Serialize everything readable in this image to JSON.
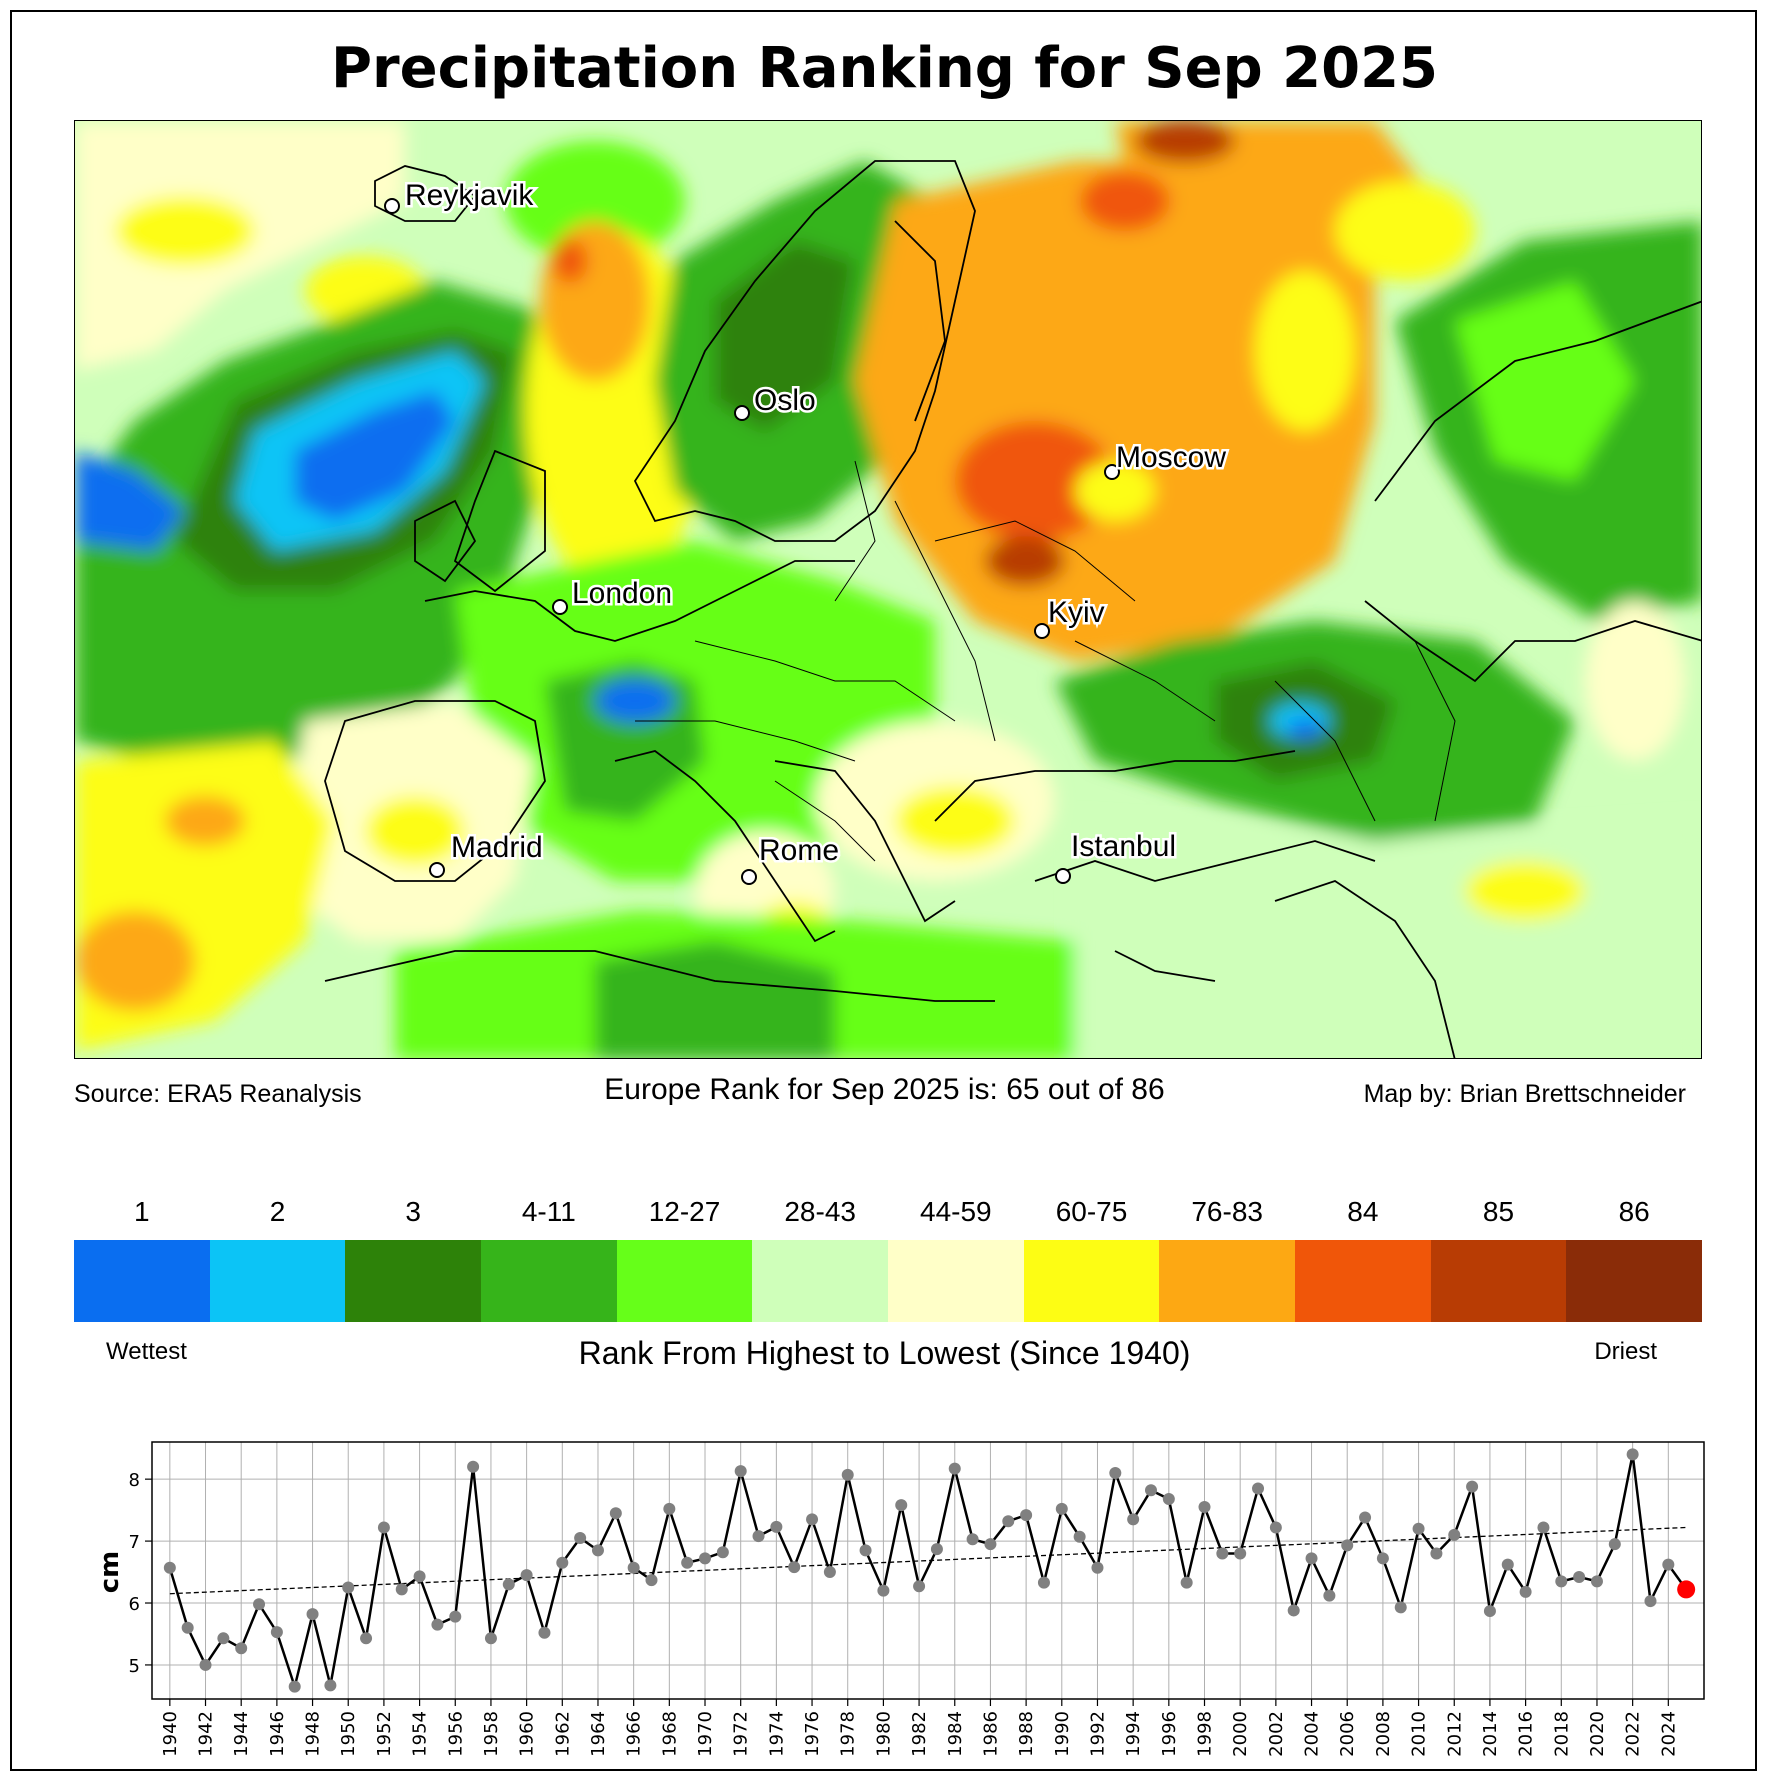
{
  "title": "Precipitation Ranking for Sep 2025",
  "source": "Source: ERA5 Reanalysis",
  "rank_statement": "Europe Rank for Sep 2025 is: 65 out of 86",
  "credit": "Map by: Brian Brettschneider",
  "cities": [
    {
      "name": "Reykjavik"
    },
    {
      "name": "Oslo"
    },
    {
      "name": "Moscow"
    },
    {
      "name": "London"
    },
    {
      "name": "Kyiv"
    },
    {
      "name": "Madrid"
    },
    {
      "name": "Rome"
    },
    {
      "name": "Istanbul"
    }
  ],
  "legend": {
    "bins": [
      {
        "label": "1",
        "color": "#0a6ef0"
      },
      {
        "label": "2",
        "color": "#0cc4f6"
      },
      {
        "label": "3",
        "color": "#2d8209"
      },
      {
        "label": "4-11",
        "color": "#36b41a"
      },
      {
        "label": "12-27",
        "color": "#66ff19"
      },
      {
        "label": "28-43",
        "color": "#cfffba"
      },
      {
        "label": "44-59",
        "color": "#ffffc8"
      },
      {
        "label": "60-75",
        "color": "#fdfd14"
      },
      {
        "label": "76-83",
        "color": "#fda813"
      },
      {
        "label": "84",
        "color": "#f05609"
      },
      {
        "label": "85",
        "color": "#b83c04"
      },
      {
        "label": "86",
        "color": "#8a2c08"
      }
    ],
    "left_label": "Wettest",
    "right_label": "Driest",
    "axis_label": "Rank From Highest to Lowest (Since 1940)"
  },
  "chart_data": {
    "type": "line",
    "title": "",
    "xlabel": "",
    "ylabel": "cm",
    "x": [
      1940,
      1941,
      1942,
      1943,
      1944,
      1945,
      1946,
      1947,
      1948,
      1949,
      1950,
      1951,
      1952,
      1953,
      1954,
      1955,
      1956,
      1957,
      1958,
      1959,
      1960,
      1961,
      1962,
      1963,
      1964,
      1965,
      1966,
      1967,
      1968,
      1969,
      1970,
      1971,
      1972,
      1973,
      1974,
      1975,
      1976,
      1977,
      1978,
      1979,
      1980,
      1981,
      1982,
      1983,
      1984,
      1985,
      1986,
      1987,
      1988,
      1989,
      1990,
      1991,
      1992,
      1993,
      1994,
      1995,
      1996,
      1997,
      1998,
      1999,
      2000,
      2001,
      2002,
      2003,
      2004,
      2005,
      2006,
      2007,
      2008,
      2009,
      2010,
      2011,
      2012,
      2013,
      2014,
      2015,
      2016,
      2017,
      2018,
      2019,
      2020,
      2021,
      2022,
      2023,
      2024,
      2025
    ],
    "values": [
      6.57,
      5.6,
      5.0,
      5.43,
      5.27,
      5.98,
      5.53,
      4.65,
      5.82,
      4.67,
      6.25,
      5.43,
      7.22,
      6.22,
      6.43,
      5.65,
      5.78,
      8.2,
      5.43,
      6.3,
      6.45,
      5.52,
      6.65,
      7.05,
      6.85,
      7.45,
      6.57,
      6.37,
      7.52,
      6.65,
      6.72,
      6.82,
      8.13,
      7.08,
      7.23,
      6.58,
      7.35,
      6.5,
      8.07,
      6.85,
      6.2,
      7.58,
      6.27,
      6.87,
      8.17,
      7.03,
      6.95,
      7.32,
      7.42,
      6.33,
      7.52,
      7.07,
      6.57,
      8.1,
      7.35,
      7.82,
      7.68,
      6.33,
      7.55,
      6.8,
      6.8,
      7.85,
      7.22,
      5.88,
      6.72,
      6.12,
      6.93,
      7.38,
      6.72,
      5.93,
      7.2,
      6.8,
      7.1,
      7.88,
      5.87,
      6.62,
      6.18,
      7.22,
      6.35,
      6.42,
      6.35,
      6.95,
      8.4,
      6.03,
      6.62,
      6.22
    ],
    "trend": {
      "start": 6.15,
      "end": 7.22
    },
    "highlight_year": 2025,
    "xlim": [
      1939,
      2026
    ],
    "ylim": [
      4.45,
      8.6
    ],
    "yticks": [
      5,
      6,
      7,
      8
    ],
    "xticks": [
      1940,
      1942,
      1944,
      1946,
      1948,
      1950,
      1952,
      1954,
      1956,
      1958,
      1960,
      1962,
      1964,
      1966,
      1968,
      1970,
      1972,
      1974,
      1976,
      1978,
      1980,
      1982,
      1984,
      1986,
      1988,
      1990,
      1992,
      1994,
      1996,
      1998,
      2000,
      2002,
      2004,
      2006,
      2008,
      2010,
      2012,
      2014,
      2016,
      2018,
      2020,
      2022,
      2024
    ],
    "grid": true,
    "colors": {
      "line": "#000000",
      "marker": "#808080",
      "highlight": "#ff0000",
      "trend": "#000000"
    }
  }
}
